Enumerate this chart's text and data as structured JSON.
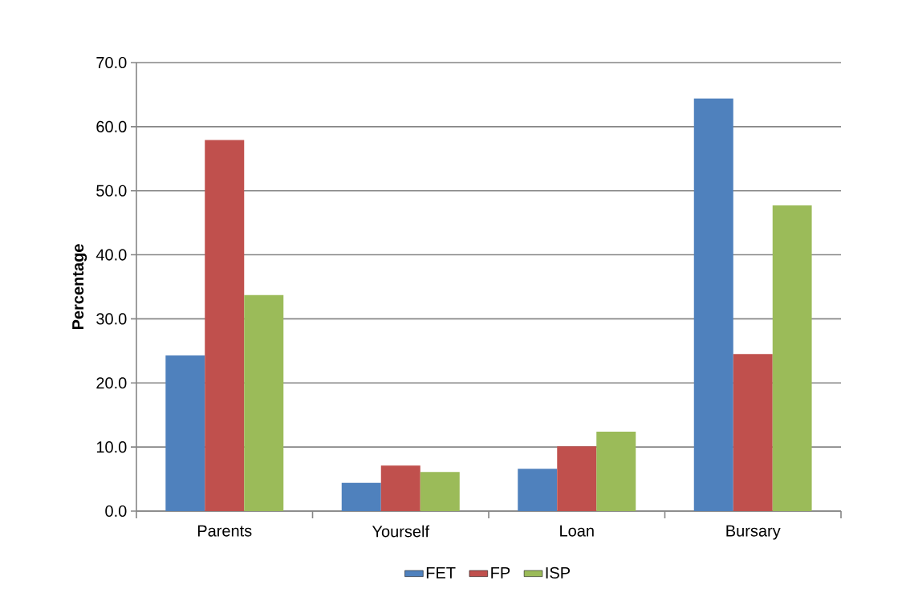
{
  "chart_data": {
    "type": "bar",
    "ylabel": "Percentage",
    "categories": [
      "Parents",
      "Yourself",
      "Loan",
      "Bursary"
    ],
    "series": [
      {
        "name": "FET",
        "color": "#4f81bd",
        "values": [
          24.3,
          4.4,
          6.6,
          64.4
        ]
      },
      {
        "name": "FP",
        "color": "#c0504d",
        "values": [
          57.9,
          7.1,
          10.1,
          24.5
        ]
      },
      {
        "name": "ISP",
        "color": "#9bbb59",
        "values": [
          33.7,
          6.1,
          12.4,
          47.7
        ]
      }
    ],
    "ylim": [
      0,
      70
    ],
    "yticks": [
      {
        "value": 0,
        "label": "0.0"
      },
      {
        "value": 10,
        "label": "10.0"
      },
      {
        "value": 20,
        "label": "20.0"
      },
      {
        "value": 30,
        "label": "30.0"
      },
      {
        "value": 40,
        "label": "40.0"
      },
      {
        "value": 50,
        "label": "50.0"
      },
      {
        "value": 60,
        "label": "60.0"
      },
      {
        "value": 70,
        "label": "70.0"
      }
    ],
    "grid": "y",
    "legend": "bottom"
  }
}
